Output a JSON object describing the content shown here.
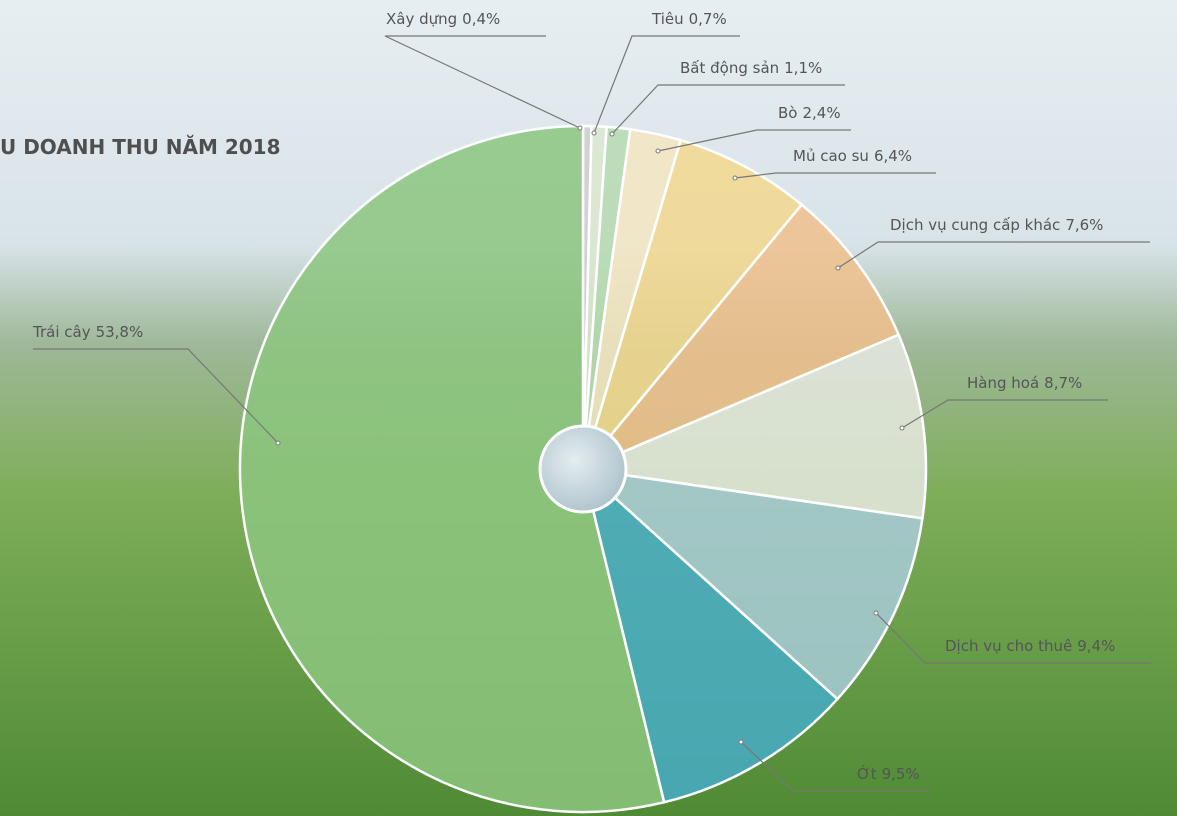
{
  "chart_data": {
    "type": "pie",
    "title": "U DOANH THU NĂM 2018",
    "categories": [
      "Xây dựng",
      "Tiêu",
      "Bất động sản",
      "Bò",
      "Mủ cao su",
      "Dịch vụ cung cấp khác",
      "Hàng hoá",
      "Dịch vụ cho thuê",
      "Ớt",
      "Trái cây"
    ],
    "values": [
      0.4,
      0.7,
      1.1,
      2.4,
      6.4,
      7.6,
      8.7,
      9.4,
      9.5,
      53.8
    ],
    "value_labels": [
      "0,4%",
      "0,7%",
      "1,1%",
      "2,4%",
      "6,4%",
      "7,6%",
      "8,7%",
      "9,4%",
      "9,5%",
      "53,8%"
    ],
    "colors": [
      "#cfcfcf",
      "#dbe8cf",
      "#b6dab0",
      "#f4e6c2",
      "#f3d78e",
      "#f0c08c",
      "#e6e9e0",
      "#a8cbd8",
      "#47abc6",
      "#8cc67f"
    ]
  }
}
